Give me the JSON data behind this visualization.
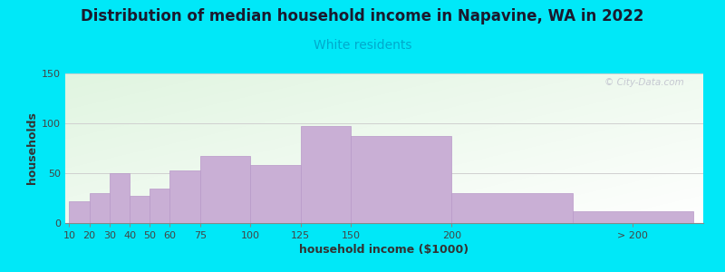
{
  "title": "Distribution of median household income in Napavine, WA in 2022",
  "subtitle": "White residents",
  "xlabel": "household income ($1000)",
  "ylabel": "households",
  "title_fontsize": 12,
  "subtitle_fontsize": 10,
  "label_fontsize": 9,
  "tick_fontsize": 8,
  "bar_color": "#c9afd5",
  "bar_edge_color": "#b898c8",
  "background_outer": "#00e8f8",
  "grid_color": "#d0d0d0",
  "watermark_text": "© City-Data.com",
  "watermark_color": "#b8b8c8",
  "categories": [
    "10",
    "20",
    "30",
    "40",
    "50",
    "60",
    "75",
    "100",
    "125",
    "150",
    "200",
    "> 200"
  ],
  "values": [
    22,
    30,
    50,
    27,
    35,
    53,
    67,
    58,
    97,
    87,
    30,
    12
  ],
  "bar_left_edges": [
    10,
    20,
    30,
    40,
    50,
    60,
    75,
    100,
    125,
    150,
    200,
    260
  ],
  "bar_widths": [
    10,
    10,
    10,
    10,
    10,
    15,
    25,
    25,
    25,
    50,
    60,
    60
  ],
  "xlim": [
    8,
    325
  ],
  "ylim": [
    0,
    150
  ],
  "yticks": [
    0,
    50,
    100,
    150
  ],
  "tick_positions": [
    10,
    20,
    30,
    40,
    50,
    60,
    75,
    100,
    125,
    150,
    200,
    290
  ],
  "tick_labels": [
    "10",
    "20",
    "30",
    "40",
    "50",
    "60",
    "75",
    "100",
    "125",
    "150",
    "200",
    "> 200"
  ],
  "separator_x": 250,
  "title_color": "#1a1a2e",
  "subtitle_color": "#00aacc"
}
